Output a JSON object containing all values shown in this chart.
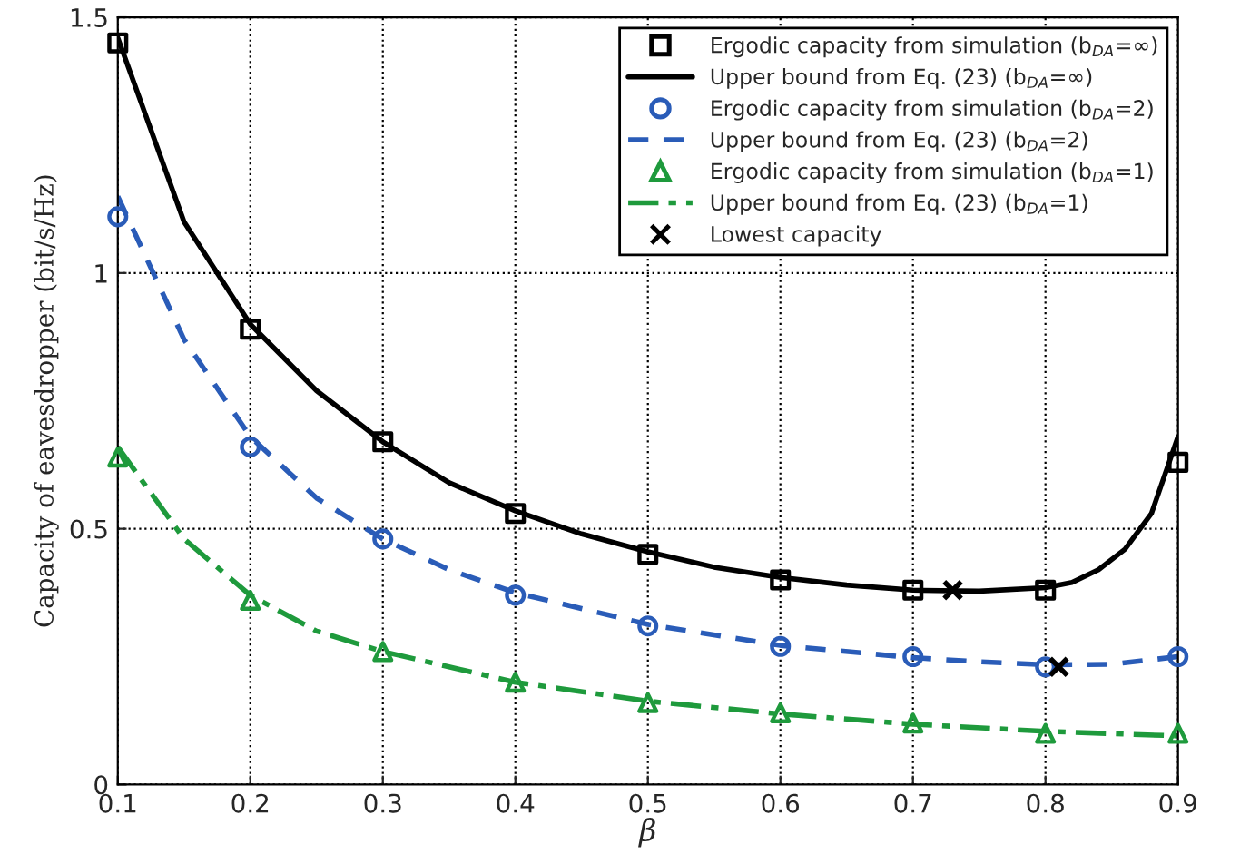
{
  "chart_data": {
    "type": "line",
    "xlabel": "β",
    "ylabel": "Capacity of eavesdropper (bit/s/Hz)",
    "xlim": [
      0.1,
      0.9
    ],
    "ylim": [
      0,
      1.5
    ],
    "xticks": [
      0.1,
      0.2,
      0.3,
      0.4,
      0.5,
      0.6,
      0.7,
      0.8,
      0.9
    ],
    "yticks": [
      0,
      0.5,
      1,
      1.5
    ],
    "grid": true,
    "legend": "top right",
    "series": [
      {
        "name": "Ergodic capacity from simulation (b$_{DA}$=∞)",
        "type": "scatter",
        "marker": "square",
        "color": "#000000",
        "x": [
          0.1,
          0.2,
          0.3,
          0.4,
          0.5,
          0.6,
          0.7,
          0.8,
          0.9
        ],
        "values": [
          1.45,
          0.89,
          0.67,
          0.53,
          0.45,
          0.4,
          0.38,
          0.38,
          0.63
        ]
      },
      {
        "name": "Upper bound from Eq. (23) (b$_{DA}$=∞)",
        "line_style": "solid",
        "color": "#000000",
        "x": [
          0.1,
          0.15,
          0.2,
          0.25,
          0.3,
          0.35,
          0.4,
          0.45,
          0.5,
          0.55,
          0.6,
          0.65,
          0.7,
          0.75,
          0.8,
          0.82,
          0.84,
          0.86,
          0.88,
          0.9
        ],
        "values": [
          1.46,
          1.1,
          0.9,
          0.77,
          0.67,
          0.59,
          0.535,
          0.49,
          0.455,
          0.425,
          0.405,
          0.39,
          0.38,
          0.378,
          0.385,
          0.395,
          0.42,
          0.46,
          0.53,
          0.68
        ]
      },
      {
        "name": "Ergodic capacity from simulation (b$_{DA}$=2)",
        "type": "scatter",
        "marker": "circle",
        "color": "#2a5cb8",
        "x": [
          0.1,
          0.2,
          0.3,
          0.4,
          0.5,
          0.6,
          0.7,
          0.8,
          0.9
        ],
        "values": [
          1.11,
          0.66,
          0.48,
          0.37,
          0.31,
          0.27,
          0.25,
          0.23,
          0.25
        ]
      },
      {
        "name": "Upper bound from Eq. (23) (b$_{DA}$=2)",
        "line_style": "dashed",
        "color": "#2a5cb8",
        "x": [
          0.1,
          0.15,
          0.2,
          0.25,
          0.3,
          0.35,
          0.4,
          0.5,
          0.6,
          0.7,
          0.75,
          0.8,
          0.85,
          0.9
        ],
        "values": [
          1.15,
          0.87,
          0.68,
          0.56,
          0.48,
          0.42,
          0.375,
          0.313,
          0.272,
          0.248,
          0.24,
          0.234,
          0.235,
          0.25
        ]
      },
      {
        "name": "Ergodic capacity from simulation (b$_{DA}$=1)",
        "type": "scatter",
        "marker": "triangle",
        "color": "#1e9a3c",
        "x": [
          0.1,
          0.2,
          0.3,
          0.4,
          0.5,
          0.6,
          0.7,
          0.8,
          0.9
        ],
        "values": [
          0.64,
          0.36,
          0.26,
          0.2,
          0.16,
          0.14,
          0.12,
          0.1,
          0.1
        ]
      },
      {
        "name": "Upper bound from Eq. (23) (b$_{DA}$=1)",
        "line_style": "dashdot",
        "color": "#1e9a3c",
        "x": [
          0.1,
          0.15,
          0.2,
          0.25,
          0.3,
          0.4,
          0.5,
          0.6,
          0.7,
          0.8,
          0.9
        ],
        "values": [
          0.66,
          0.48,
          0.37,
          0.3,
          0.26,
          0.2,
          0.163,
          0.138,
          0.118,
          0.104,
          0.095
        ]
      },
      {
        "name": "Lowest capacity",
        "type": "scatter",
        "marker": "cross",
        "color": "#000000",
        "x": [
          0.73,
          0.81
        ],
        "values": [
          0.38,
          0.23
        ]
      }
    ]
  }
}
